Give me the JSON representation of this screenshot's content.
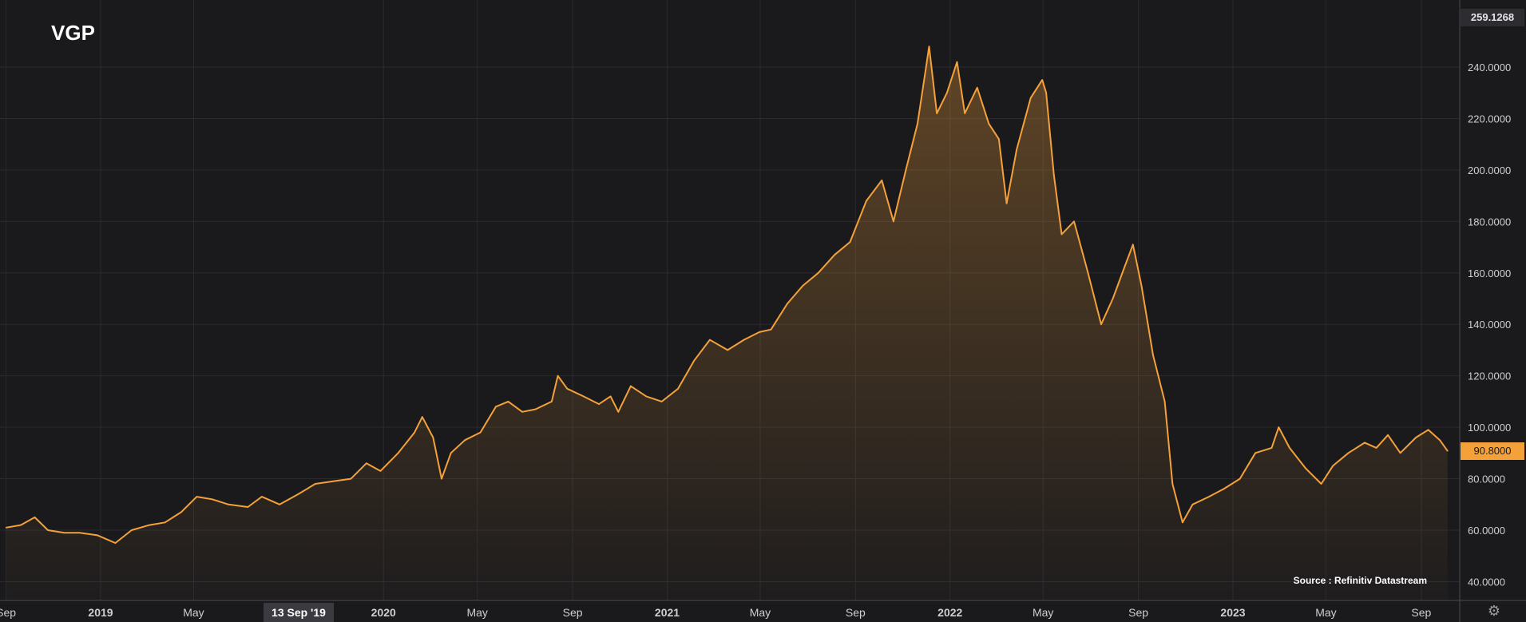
{
  "title": "VGP",
  "source": "Source : Refinitiv Datastream",
  "price_badges": {
    "top": "259.1268",
    "last": "90.8000"
  },
  "crosshair_label": "13 Sep '19",
  "settings_icon": "gear-icon",
  "colors": {
    "background": "#1a1a1d",
    "line": "#f4a13a",
    "grid": "#2a2a2e",
    "axis_text": "#cfcfcf"
  },
  "chart_data": {
    "type": "area",
    "series_color": "#f4a13a",
    "ylim": [
      40,
      259.1268
    ],
    "y_ticks": [
      "240.0000",
      "220.0000",
      "200.0000",
      "180.0000",
      "160.0000",
      "140.0000",
      "120.0000",
      "100.0000",
      "80.0000",
      "60.0000",
      "40.0000"
    ],
    "x_ticks": [
      {
        "label": "Sep",
        "date": "2018-09-01",
        "bold": false
      },
      {
        "label": "2019",
        "date": "2019-01-01",
        "bold": true
      },
      {
        "label": "May",
        "date": "2019-05-01",
        "bold": false
      },
      {
        "label": "2020",
        "date": "2020-01-01",
        "bold": true
      },
      {
        "label": "May",
        "date": "2020-05-01",
        "bold": false
      },
      {
        "label": "Sep",
        "date": "2020-09-01",
        "bold": false
      },
      {
        "label": "2021",
        "date": "2021-01-01",
        "bold": true
      },
      {
        "label": "May",
        "date": "2021-05-01",
        "bold": false
      },
      {
        "label": "Sep",
        "date": "2021-09-01",
        "bold": false
      },
      {
        "label": "2022",
        "date": "2022-01-01",
        "bold": true
      },
      {
        "label": "May",
        "date": "2022-05-01",
        "bold": false
      },
      {
        "label": "Sep",
        "date": "2022-09-01",
        "bold": false
      },
      {
        "label": "2023",
        "date": "2023-01-01",
        "bold": true
      },
      {
        "label": "May",
        "date": "2023-05-01",
        "bold": false
      },
      {
        "label": "Sep",
        "date": "2023-09-01",
        "bold": false
      }
    ],
    "points": [
      [
        "2018-09-01",
        61
      ],
      [
        "2018-09-20",
        62
      ],
      [
        "2018-10-08",
        65
      ],
      [
        "2018-10-25",
        60
      ],
      [
        "2018-11-15",
        59
      ],
      [
        "2018-12-05",
        59
      ],
      [
        "2018-12-28",
        58
      ],
      [
        "2019-01-20",
        55
      ],
      [
        "2019-02-10",
        60
      ],
      [
        "2019-03-05",
        62
      ],
      [
        "2019-03-25",
        63
      ],
      [
        "2019-04-15",
        67
      ],
      [
        "2019-05-05",
        73
      ],
      [
        "2019-05-25",
        72
      ],
      [
        "2019-06-15",
        70
      ],
      [
        "2019-07-10",
        69
      ],
      [
        "2019-07-28",
        73
      ],
      [
        "2019-08-20",
        70
      ],
      [
        "2019-09-13",
        74
      ],
      [
        "2019-10-05",
        78
      ],
      [
        "2019-10-28",
        79
      ],
      [
        "2019-11-20",
        80
      ],
      [
        "2019-12-10",
        86
      ],
      [
        "2019-12-28",
        83
      ],
      [
        "2020-01-20",
        90
      ],
      [
        "2020-02-10",
        98
      ],
      [
        "2020-02-20",
        104
      ],
      [
        "2020-03-05",
        96
      ],
      [
        "2020-03-16",
        80
      ],
      [
        "2020-03-28",
        90
      ],
      [
        "2020-04-15",
        95
      ],
      [
        "2020-05-05",
        98
      ],
      [
        "2020-05-25",
        108
      ],
      [
        "2020-06-10",
        110
      ],
      [
        "2020-06-28",
        106
      ],
      [
        "2020-07-15",
        107
      ],
      [
        "2020-08-05",
        110
      ],
      [
        "2020-08-13",
        120
      ],
      [
        "2020-08-25",
        115
      ],
      [
        "2020-09-15",
        112
      ],
      [
        "2020-10-05",
        109
      ],
      [
        "2020-10-20",
        112
      ],
      [
        "2020-10-30",
        106
      ],
      [
        "2020-11-15",
        116
      ],
      [
        "2020-12-05",
        112
      ],
      [
        "2020-12-25",
        110
      ],
      [
        "2021-01-15",
        115
      ],
      [
        "2021-02-05",
        126
      ],
      [
        "2021-02-25",
        134
      ],
      [
        "2021-03-20",
        130
      ],
      [
        "2021-04-10",
        134
      ],
      [
        "2021-04-30",
        137
      ],
      [
        "2021-05-15",
        138
      ],
      [
        "2021-06-05",
        148
      ],
      [
        "2021-06-25",
        155
      ],
      [
        "2021-07-15",
        160
      ],
      [
        "2021-08-05",
        167
      ],
      [
        "2021-08-25",
        172
      ],
      [
        "2021-09-15",
        188
      ],
      [
        "2021-10-05",
        196
      ],
      [
        "2021-10-20",
        180
      ],
      [
        "2021-11-05",
        200
      ],
      [
        "2021-11-20",
        218
      ],
      [
        "2021-12-01",
        240
      ],
      [
        "2021-12-05",
        248
      ],
      [
        "2021-12-15",
        222
      ],
      [
        "2021-12-28",
        230
      ],
      [
        "2022-01-10",
        242
      ],
      [
        "2022-01-20",
        222
      ],
      [
        "2022-02-05",
        232
      ],
      [
        "2022-02-20",
        218
      ],
      [
        "2022-03-05",
        212
      ],
      [
        "2022-03-15",
        187
      ],
      [
        "2022-03-28",
        208
      ],
      [
        "2022-04-15",
        228
      ],
      [
        "2022-04-30",
        235
      ],
      [
        "2022-05-05",
        230
      ],
      [
        "2022-05-15",
        198
      ],
      [
        "2022-05-25",
        175
      ],
      [
        "2022-06-10",
        180
      ],
      [
        "2022-06-28",
        160
      ],
      [
        "2022-07-15",
        140
      ],
      [
        "2022-07-30",
        150
      ],
      [
        "2022-08-15",
        163
      ],
      [
        "2022-08-25",
        171
      ],
      [
        "2022-09-05",
        155
      ],
      [
        "2022-09-20",
        128
      ],
      [
        "2022-10-05",
        110
      ],
      [
        "2022-10-15",
        78
      ],
      [
        "2022-10-28",
        63
      ],
      [
        "2022-11-10",
        70
      ],
      [
        "2022-12-01",
        73
      ],
      [
        "2022-12-20",
        76
      ],
      [
        "2023-01-10",
        80
      ],
      [
        "2023-01-30",
        90
      ],
      [
        "2023-02-20",
        92
      ],
      [
        "2023-03-01",
        100
      ],
      [
        "2023-03-15",
        92
      ],
      [
        "2023-04-05",
        84
      ],
      [
        "2023-04-25",
        78
      ],
      [
        "2023-05-10",
        85
      ],
      [
        "2023-05-30",
        90
      ],
      [
        "2023-06-20",
        94
      ],
      [
        "2023-07-05",
        92
      ],
      [
        "2023-07-20",
        97
      ],
      [
        "2023-08-05",
        90
      ],
      [
        "2023-08-25",
        96
      ],
      [
        "2023-09-10",
        99
      ],
      [
        "2023-09-25",
        95
      ],
      [
        "2023-10-05",
        90.8
      ]
    ]
  }
}
